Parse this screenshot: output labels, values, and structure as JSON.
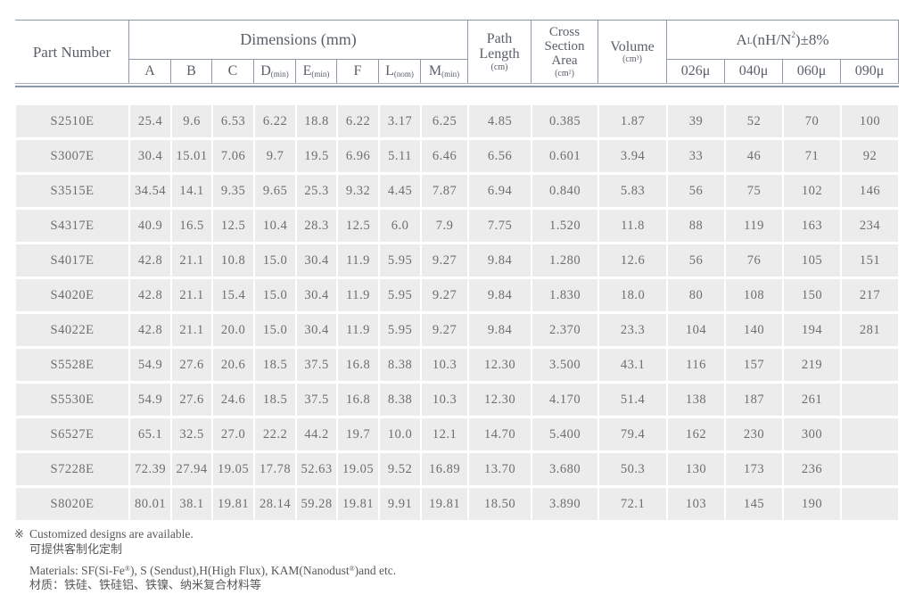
{
  "table": {
    "header": {
      "part_number": "Part Number",
      "dimensions_title": "Dimensions (mm)",
      "dim_cols": [
        {
          "main": "A",
          "sub": ""
        },
        {
          "main": "B",
          "sub": ""
        },
        {
          "main": "C",
          "sub": ""
        },
        {
          "main": "D",
          "sub": "(min)"
        },
        {
          "main": "E",
          "sub": "(min)"
        },
        {
          "main": "F",
          "sub": ""
        },
        {
          "main": "L",
          "sub": "(nom)"
        },
        {
          "main": "M",
          "sub": "(min)"
        }
      ],
      "path_length": {
        "line1": "Path",
        "line2": "Length",
        "unit": "(cm)"
      },
      "cross_section": {
        "line1": "Cross",
        "line2": "Section",
        "line3": "Area",
        "unit": "(cm²)"
      },
      "volume": {
        "line1": "Volume",
        "unit": "(cm³)"
      },
      "al_title": {
        "pre": "A",
        "sub": "L",
        "mid": "(nH/N",
        "sup": "2",
        "post": ")±8%"
      },
      "al_cols": [
        "026μ",
        "040μ",
        "060μ",
        "090μ"
      ]
    },
    "rows": [
      [
        "S2510E",
        "25.4",
        "9.6",
        "6.53",
        "6.22",
        "18.8",
        "6.22",
        "3.17",
        "6.25",
        "4.85",
        "0.385",
        "1.87",
        "39",
        "52",
        "70",
        "100"
      ],
      [
        "S3007E",
        "30.4",
        "15.01",
        "7.06",
        "9.7",
        "19.5",
        "6.96",
        "5.11",
        "6.46",
        "6.56",
        "0.601",
        "3.94",
        "33",
        "46",
        "71",
        "92"
      ],
      [
        "S3515E",
        "34.54",
        "14.1",
        "9.35",
        "9.65",
        "25.3",
        "9.32",
        "4.45",
        "7.87",
        "6.94",
        "0.840",
        "5.83",
        "56",
        "75",
        "102",
        "146"
      ],
      [
        "S4317E",
        "40.9",
        "16.5",
        "12.5",
        "10.4",
        "28.3",
        "12.5",
        "6.0",
        "7.9",
        "7.75",
        "1.520",
        "11.8",
        "88",
        "119",
        "163",
        "234"
      ],
      [
        "S4017E",
        "42.8",
        "21.1",
        "10.8",
        "15.0",
        "30.4",
        "11.9",
        "5.95",
        "9.27",
        "9.84",
        "1.280",
        "12.6",
        "56",
        "76",
        "105",
        "151"
      ],
      [
        "S4020E",
        "42.8",
        "21.1",
        "15.4",
        "15.0",
        "30.4",
        "11.9",
        "5.95",
        "9.27",
        "9.84",
        "1.830",
        "18.0",
        "80",
        "108",
        "150",
        "217"
      ],
      [
        "S4022E",
        "42.8",
        "21.1",
        "20.0",
        "15.0",
        "30.4",
        "11.9",
        "5.95",
        "9.27",
        "9.84",
        "2.370",
        "23.3",
        "104",
        "140",
        "194",
        "281"
      ],
      [
        "S5528E",
        "54.9",
        "27.6",
        "20.6",
        "18.5",
        "37.5",
        "16.8",
        "8.38",
        "10.3",
        "12.30",
        "3.500",
        "43.1",
        "116",
        "157",
        "219",
        ""
      ],
      [
        "S5530E",
        "54.9",
        "27.6",
        "24.6",
        "18.5",
        "37.5",
        "16.8",
        "8.38",
        "10.3",
        "12.30",
        "4.170",
        "51.4",
        "138",
        "187",
        "261",
        ""
      ],
      [
        "S6527E",
        "65.1",
        "32.5",
        "27.0",
        "22.2",
        "44.2",
        "19.7",
        "10.0",
        "12.1",
        "14.70",
        "5.400",
        "79.4",
        "162",
        "230",
        "300",
        ""
      ],
      [
        "S7228E",
        "72.39",
        "27.94",
        "19.05",
        "17.78",
        "52.63",
        "19.05",
        "9.52",
        "16.89",
        "13.70",
        "3.680",
        "50.3",
        "130",
        "173",
        "236",
        ""
      ],
      [
        "S8020E",
        "80.01",
        "38.1",
        "19.81",
        "28.14",
        "59.28",
        "19.81",
        "9.91",
        "19.81",
        "18.50",
        "3.890",
        "72.1",
        "103",
        "145",
        "190",
        ""
      ]
    ]
  },
  "notes": {
    "mark": "※",
    "custom_en": "Customized designs are available.",
    "custom_zh": "可提供客制化定制",
    "materials_a": "Materials: SF(Si-Fe",
    "reg": "®",
    "materials_b": "), S (Sendust),H(High Flux), KAM(Nanodust",
    "materials_c": ")and etc.",
    "materials_zh": "材质：铁硅、铁硅铝、铁镍、纳米复合材料等"
  },
  "colors": {
    "border": "#8c98ab",
    "cell_bg": "#ececec",
    "header_text": "#5a6069",
    "data_text": "#6e6e6e"
  }
}
